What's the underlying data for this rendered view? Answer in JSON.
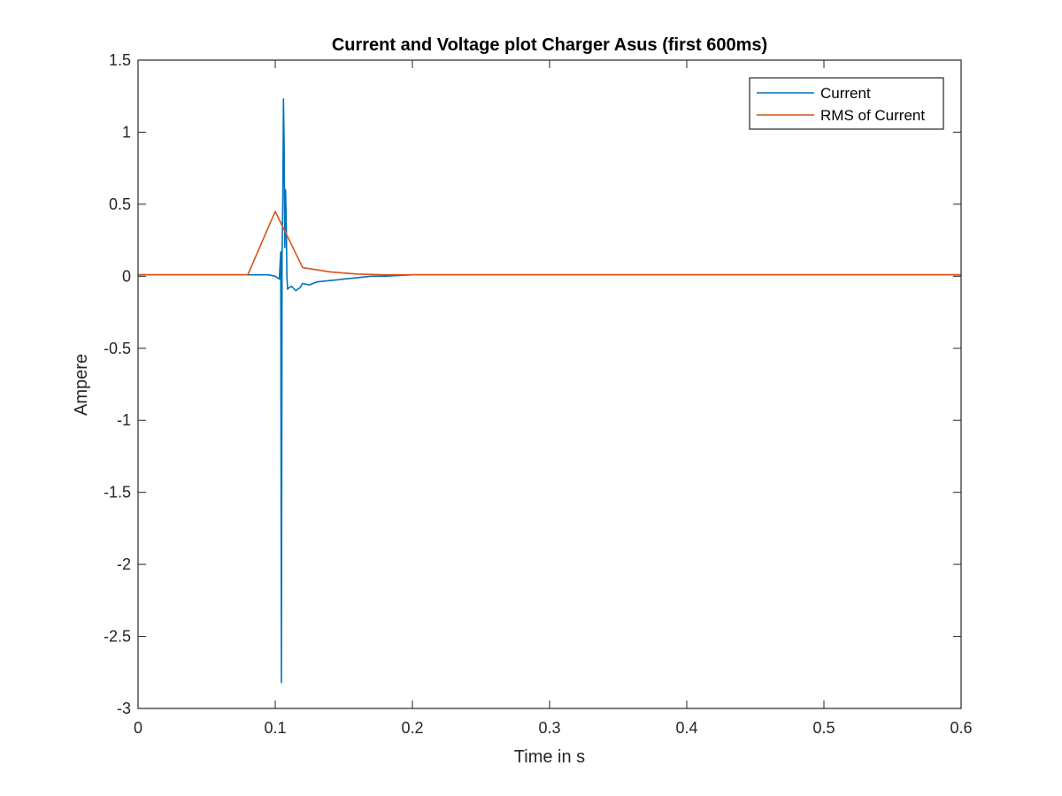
{
  "chart_data": {
    "type": "line",
    "title": "Current and Voltage plot Charger Asus (first 600ms)",
    "xlabel": "Time in s",
    "ylabel": "Ampere",
    "xlim": [
      0,
      0.6
    ],
    "ylim": [
      -3,
      1.5
    ],
    "xticks": [
      0,
      0.1,
      0.2,
      0.3,
      0.4,
      0.5,
      0.6
    ],
    "xtick_labels": [
      "0",
      "0.1",
      "0.2",
      "0.3",
      "0.4",
      "0.5",
      "0.6"
    ],
    "yticks": [
      1.5,
      1,
      0.5,
      0,
      -0.5,
      -1,
      -1.5,
      -2,
      -2.5,
      -3
    ],
    "ytick_labels": [
      "1.5",
      "1",
      "0.5",
      "0",
      "-0.5",
      "-1",
      "-1.5",
      "-2",
      "-2.5",
      "-3"
    ],
    "grid": false,
    "legend_position": "top-right",
    "series": [
      {
        "name": "Current",
        "color": "#0072BD",
        "x": [
          0,
          0.02,
          0.04,
          0.06,
          0.08,
          0.095,
          0.1,
          0.103,
          0.104,
          0.1045,
          0.105,
          0.1055,
          0.106,
          0.1065,
          0.107,
          0.1075,
          0.108,
          0.1085,
          0.109,
          0.11,
          0.112,
          0.115,
          0.118,
          0.12,
          0.125,
          0.13,
          0.14,
          0.15,
          0.16,
          0.17,
          0.18,
          0.2,
          0.6
        ],
        "y": [
          0.01,
          0.01,
          0.01,
          0.01,
          0.01,
          0.01,
          0.0,
          -0.02,
          0.17,
          -2.82,
          0.15,
          0.5,
          1.23,
          0.9,
          0.2,
          0.6,
          0.4,
          0.0,
          -0.09,
          -0.08,
          -0.07,
          -0.1,
          -0.08,
          -0.05,
          -0.06,
          -0.04,
          -0.03,
          -0.02,
          -0.01,
          0.0,
          0.0,
          0.01,
          0.01
        ]
      },
      {
        "name": "RMS of Current",
        "color": "#D95319",
        "x": [
          0,
          0.08,
          0.1,
          0.12,
          0.14,
          0.16,
          0.18,
          0.2,
          0.6
        ],
        "y": [
          0.01,
          0.01,
          0.45,
          0.06,
          0.03,
          0.015,
          0.01,
          0.01,
          0.01
        ]
      }
    ]
  }
}
